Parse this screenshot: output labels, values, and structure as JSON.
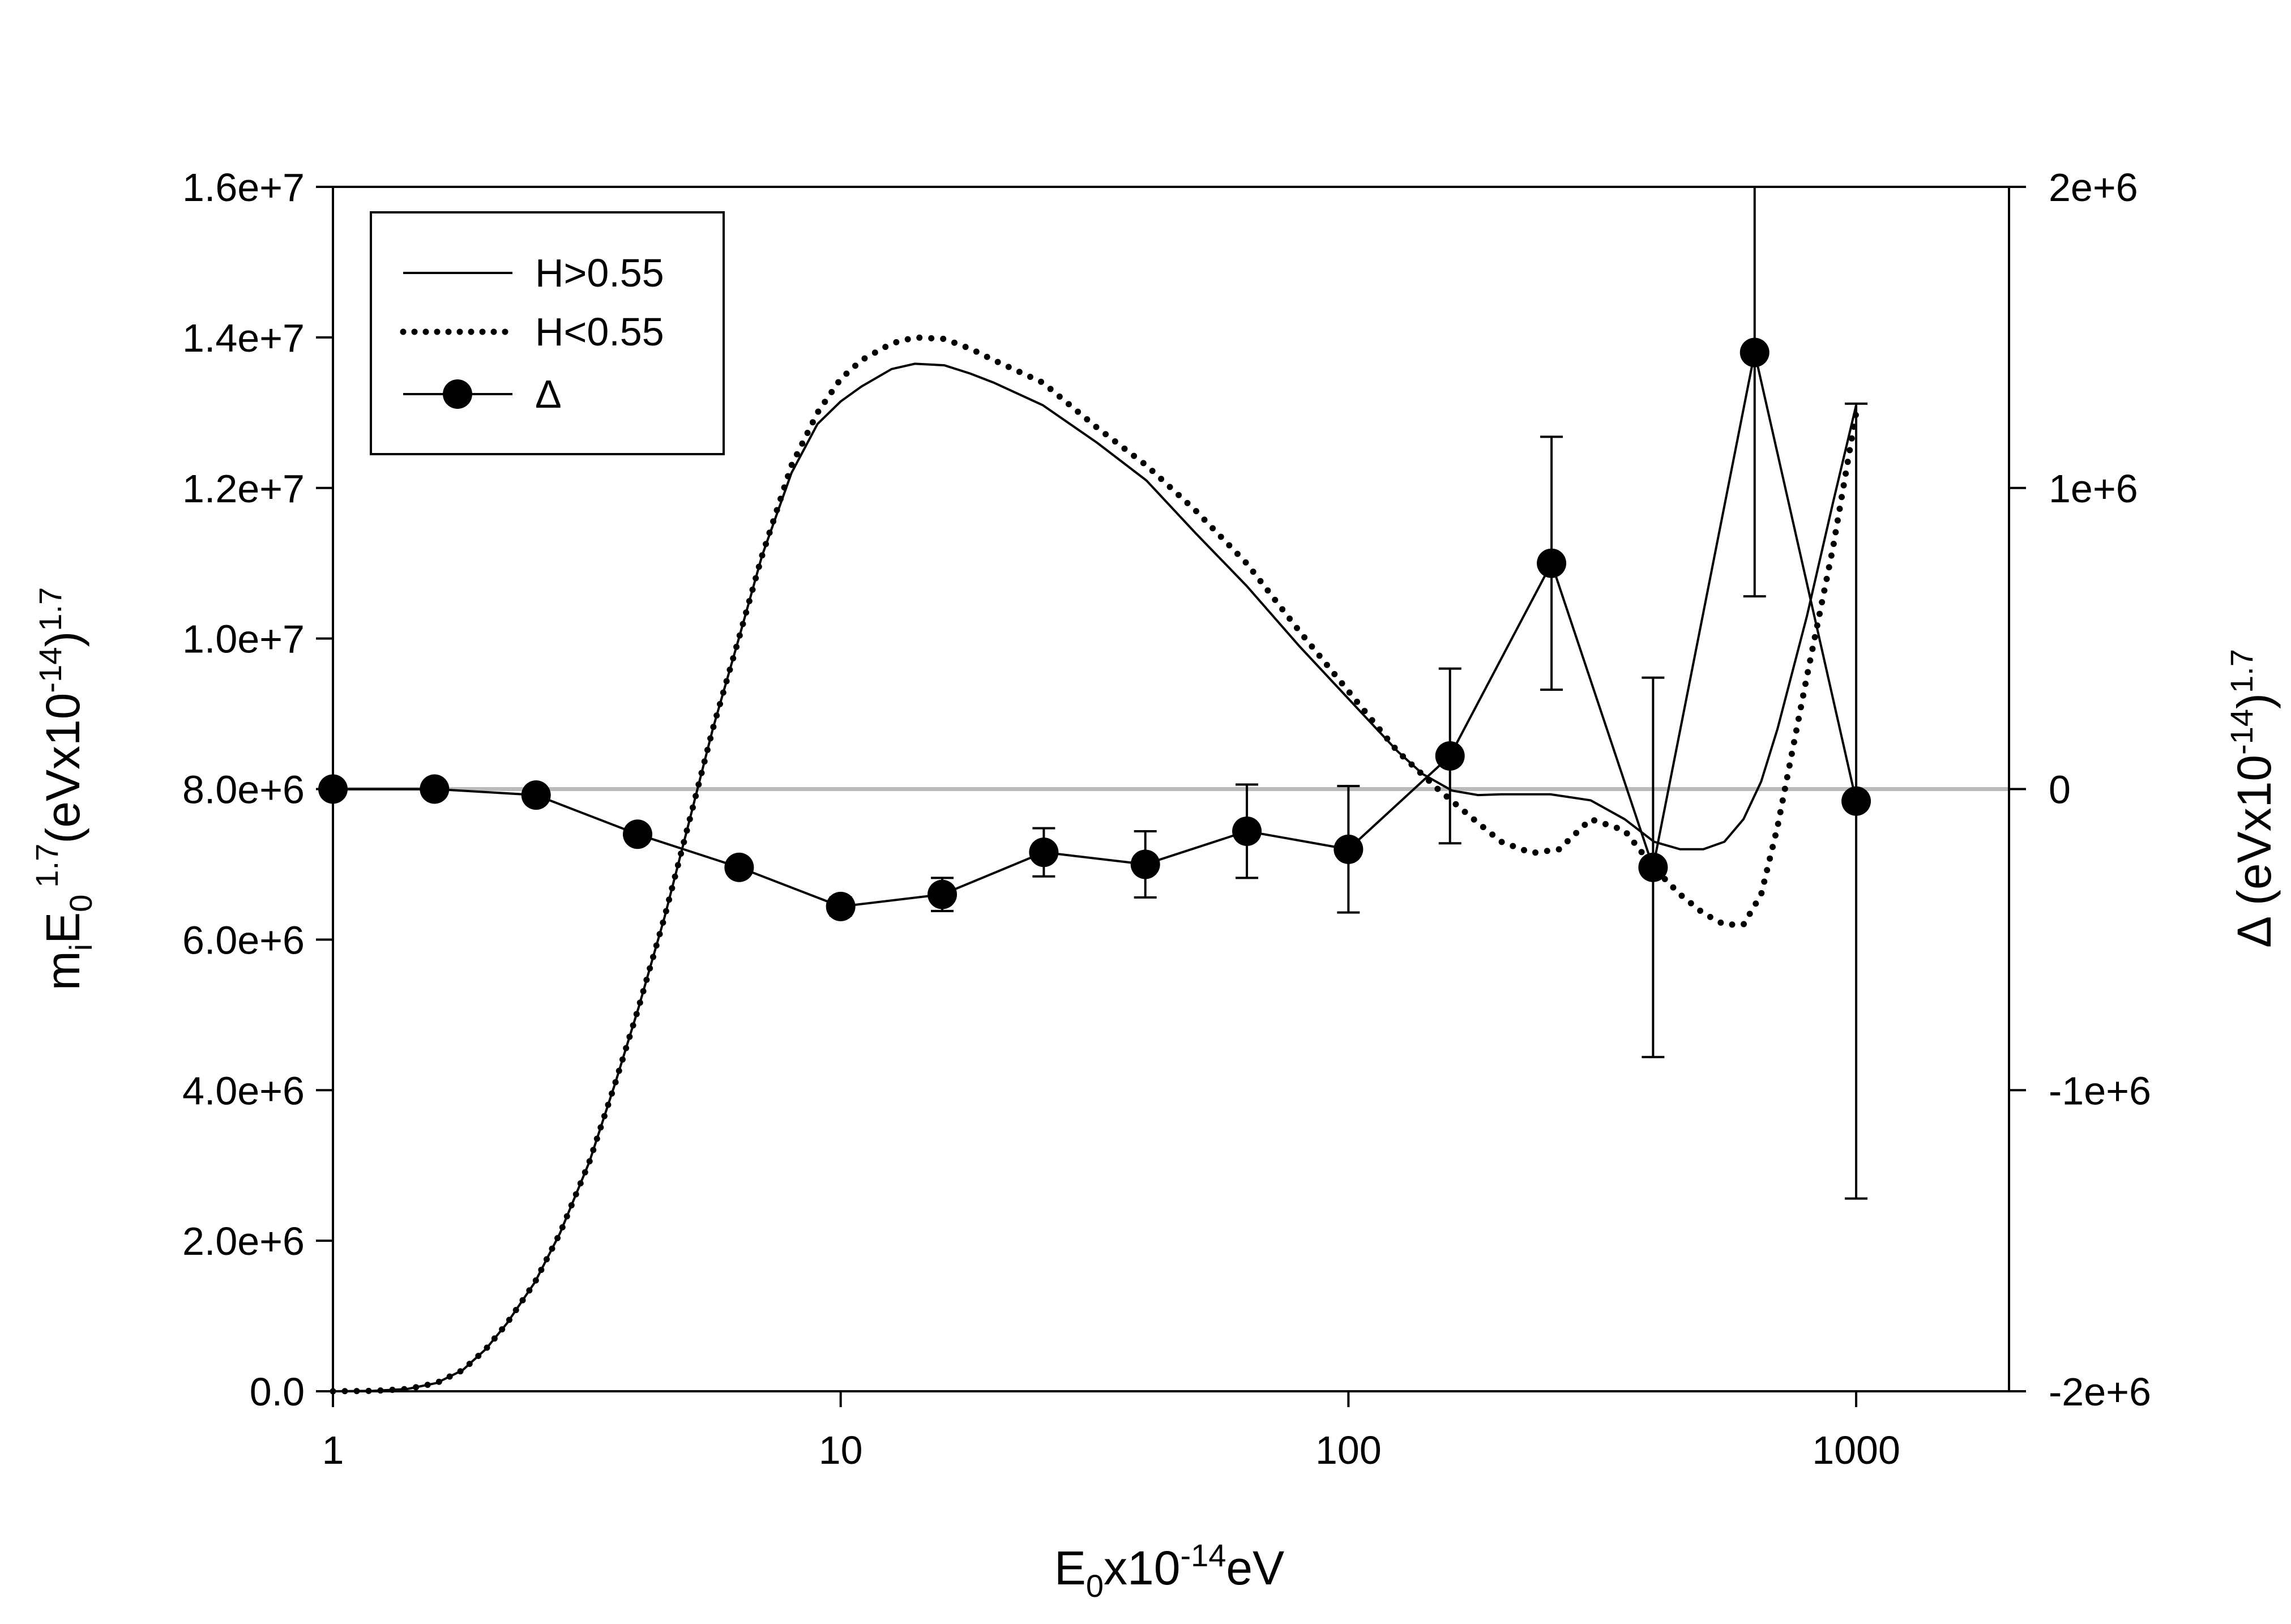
{
  "chart_data": {
    "type": "line",
    "x_scale": "log",
    "xlim": [
      1,
      2000
    ],
    "ylim_left": [
      0,
      16000000
    ],
    "ylim_right": [
      -2000000,
      2000000
    ],
    "x_ticks": [
      {
        "value": 1,
        "label": "1"
      },
      {
        "value": 10,
        "label": "10"
      },
      {
        "value": 100,
        "label": "100"
      },
      {
        "value": 1000,
        "label": "1000"
      }
    ],
    "y_left_ticks": [
      {
        "value": 0,
        "label": "0.0"
      },
      {
        "value": 2000000,
        "label": "2.0e+6"
      },
      {
        "value": 4000000,
        "label": "4.0e+6"
      },
      {
        "value": 6000000,
        "label": "6.0e+6"
      },
      {
        "value": 8000000,
        "label": "8.0e+6"
      },
      {
        "value": 10000000,
        "label": "1.0e+7"
      },
      {
        "value": 12000000,
        "label": "1.2e+7"
      },
      {
        "value": 14000000,
        "label": "1.4e+7"
      },
      {
        "value": 16000000,
        "label": "1.6e+7"
      }
    ],
    "y_right_ticks": [
      {
        "value": -2000000,
        "label": "-2e+6"
      },
      {
        "value": -1000000,
        "label": "-1e+6"
      },
      {
        "value": 0,
        "label": "0"
      },
      {
        "value": 1000000,
        "label": "1e+6"
      },
      {
        "value": 2000000,
        "label": "2e+6"
      }
    ],
    "xlabel": {
      "base": "E",
      "sub": "0",
      "mid": "x10",
      "sup": "-14",
      "tail": "eV"
    },
    "ylabel_left": {
      "m": "m",
      "m_sub": "i",
      "e": "E",
      "e_sub": "0",
      "e_sup": "1.7",
      "paren": "(eVx10",
      "paren_sup": "-14",
      "close": ")",
      "outer_sup": "1.7"
    },
    "ylabel_right": {
      "delta": "Δ (eVx10",
      "sup": "-14",
      "close": ")",
      "outer_sup": "1.7"
    },
    "legend": {
      "placement": "top-left",
      "entries": [
        {
          "label": "H>0.55",
          "style": "solid"
        },
        {
          "label": "H<0.55",
          "style": "dotted"
        },
        {
          "label": "Δ",
          "style": "line-marker"
        }
      ]
    },
    "series": [
      {
        "name": "H>0.55",
        "axis": "left",
        "style": "solid",
        "x": [
          1,
          1.2,
          1.4,
          1.6,
          1.8,
          2.0,
          2.2,
          2.5,
          2.8,
          3.2,
          3.6,
          4.0,
          4.5,
          5.0,
          5.6,
          6.3,
          7.0,
          8.0,
          9.0,
          10,
          11,
          12.6,
          14,
          16,
          18,
          20,
          25,
          32,
          40,
          50,
          63,
          80,
          100,
          125,
          140,
          160,
          180,
          200,
          250,
          300,
          350,
          400,
          450,
          500,
          550,
          600,
          650,
          700,
          800,
          900,
          1000
        ],
        "y": [
          0,
          5000,
          30000,
          110000,
          280000,
          560000,
          900000,
          1450000,
          2100000,
          3050000,
          4100000,
          5100000,
          6300000,
          7500000,
          8800000,
          10000000,
          11100000,
          12200000,
          12850000,
          13150000,
          13350000,
          13580000,
          13650000,
          13630000,
          13520000,
          13400000,
          13100000,
          12600000,
          12100000,
          11400000,
          10700000,
          9900000,
          9200000,
          8500000,
          8200000,
          7980000,
          7920000,
          7930000,
          7930000,
          7850000,
          7600000,
          7300000,
          7200000,
          7200000,
          7300000,
          7600000,
          8100000,
          8800000,
          10300000,
          11800000,
          13100000
        ]
      },
      {
        "name": "H<0.55",
        "axis": "left",
        "style": "dotted",
        "x": [
          1,
          1.2,
          1.4,
          1.6,
          1.8,
          2.0,
          2.2,
          2.5,
          2.8,
          3.2,
          3.6,
          4.0,
          4.5,
          5.0,
          5.6,
          6.3,
          7.0,
          8.0,
          9.0,
          10,
          11,
          12.6,
          14,
          16,
          18,
          20,
          25,
          32,
          40,
          50,
          63,
          80,
          100,
          125,
          150,
          180,
          200,
          230,
          260,
          300,
          350,
          400,
          450,
          500,
          550,
          600,
          650,
          700,
          800,
          900,
          1000
        ],
        "y": [
          0,
          5000,
          30000,
          110000,
          280000,
          560000,
          900000,
          1450000,
          2100000,
          3050000,
          4100000,
          5100000,
          6300000,
          7500000,
          8800000,
          10000000,
          11100000,
          12300000,
          13000000,
          13450000,
          13700000,
          13920000,
          14000000,
          13980000,
          13850000,
          13700000,
          13400000,
          12800000,
          12300000,
          11700000,
          11000000,
          10100000,
          9300000,
          8500000,
          8000000,
          7550000,
          7300000,
          7150000,
          7200000,
          7600000,
          7450000,
          6950000,
          6600000,
          6350000,
          6200000,
          6200000,
          6600000,
          7500000,
          9500000,
          11200000,
          13000000
        ]
      },
      {
        "name": "Δ",
        "axis": "right",
        "style": "line-marker",
        "x": [
          1,
          1.585,
          2.512,
          3.981,
          6.31,
          10,
          15.85,
          25.12,
          39.81,
          63.1,
          100,
          158.5,
          251.2,
          398.1,
          631,
          1000
        ],
        "y": [
          0,
          0,
          -20000,
          -150000,
          -260000,
          -390000,
          -350000,
          -210000,
          -250000,
          -140000,
          -200000,
          110000,
          750000,
          -260000,
          1450000,
          -40000
        ],
        "err": [
          0,
          0,
          0,
          0,
          0,
          30000,
          55000,
          80000,
          110000,
          155000,
          210000,
          290000,
          420000,
          630000,
          810000,
          1320000
        ]
      }
    ],
    "zero_line": {
      "axis": "right",
      "value": 0,
      "color": "#bbbbbb"
    }
  }
}
